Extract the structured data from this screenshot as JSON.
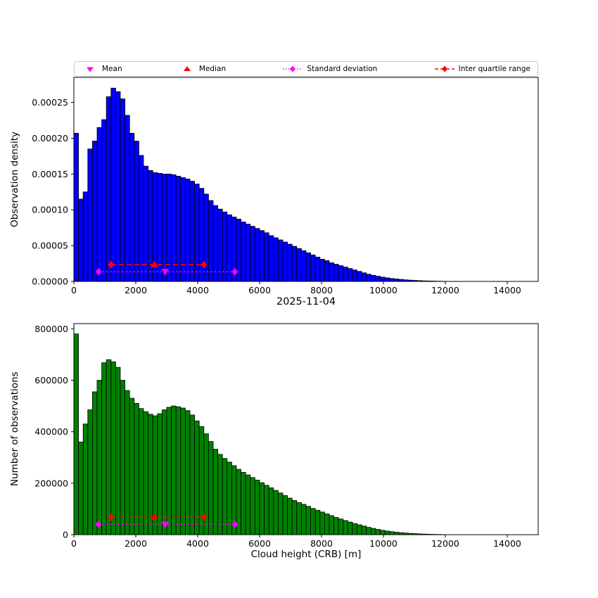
{
  "legend": {
    "items": [
      {
        "label": "Mean",
        "marker": "triangle-down",
        "color": "#FF00FF"
      },
      {
        "label": "Median",
        "marker": "triangle-up",
        "color": "#FF0000"
      },
      {
        "label": "Standard deviation",
        "marker": "diamond-dotted-line",
        "color": "#FF00FF"
      },
      {
        "label": "Inter quartile range",
        "marker": "diamond-dashed-line",
        "color": "#FF0000"
      }
    ]
  },
  "chart_data": [
    {
      "type": "bar",
      "name": "density-histogram",
      "title": "",
      "xlabel": "2025-11-04",
      "ylabel": "Observation density",
      "bar_color": "#0000FF",
      "grid": false,
      "legend_position": "top",
      "bin_start": 0,
      "bin_width": 150,
      "xlim": [
        0,
        15000
      ],
      "ylim": [
        0,
        0.000285
      ],
      "xticks": [
        0,
        2000,
        4000,
        6000,
        8000,
        10000,
        12000,
        14000
      ],
      "xtick_labels": [
        "0",
        "2000",
        "4000",
        "6000",
        "8000",
        "10000",
        "12000",
        "14000"
      ],
      "yticks": [
        0,
        5e-05,
        0.0001,
        0.00015,
        0.0002,
        0.00025
      ],
      "ytick_labels": [
        "0.00000",
        "0.00005",
        "0.00010",
        "0.00015",
        "0.00020",
        "0.00025"
      ],
      "values": [
        0.000207,
        0.000115,
        0.000125,
        0.000185,
        0.000196,
        0.000215,
        0.000226,
        0.000258,
        0.00027,
        0.000265,
        0.000255,
        0.000232,
        0.000207,
        0.000196,
        0.000176,
        0.000161,
        0.000155,
        0.000152,
        0.000151,
        0.00015,
        0.00015,
        0.000149,
        0.000147,
        0.000145,
        0.000143,
        0.00014,
        0.000136,
        0.00013,
        0.000122,
        0.000113,
        0.000106,
        0.000101,
        9.7e-05,
        9.3e-05,
        9e-05,
        8.7e-05,
        8.3e-05,
        8e-05,
        7.7e-05,
        7.4e-05,
        7.1e-05,
        6.8e-05,
        6.4e-05,
        6.1e-05,
        5.8e-05,
        5.5e-05,
        5.2e-05,
        4.9e-05,
        4.6e-05,
        4.3e-05,
        4e-05,
        3.7e-05,
        3.4e-05,
        3.1e-05,
        2.9e-05,
        2.6e-05,
        2.4e-05,
        2.2e-05,
        2e-05,
        1.8e-05,
        1.6e-05,
        1.4e-05,
        1.2e-05,
        1e-05,
        8.5e-06,
        7.2e-06,
        6e-06,
        5e-06,
        4.1e-06,
        3.4e-06,
        2.8e-06,
        2.2e-06,
        1.8e-06,
        1.4e-06,
        1.1e-06,
        8e-07,
        6e-07,
        5e-07,
        3e-07,
        2e-07
      ],
      "stats": {
        "mean": 2950,
        "mean_color": "#FF00FF",
        "median": 2600,
        "median_color": "#FF0000",
        "std_range": [
          800,
          5200
        ],
        "std_y": 1.35e-05,
        "std_color": "#FF00FF",
        "iqr_range": [
          1200,
          4200
        ],
        "iqr_y": 2.35e-05,
        "iqr_color": "#FF0000"
      }
    },
    {
      "type": "bar",
      "name": "count-histogram",
      "title": "",
      "xlabel": "Cloud height (CRB) [m]",
      "ylabel": "Number of observations",
      "bar_color": "#008000",
      "grid": false,
      "legend_position": "none",
      "bin_start": 0,
      "bin_width": 150,
      "xlim": [
        0,
        15000
      ],
      "ylim": [
        0,
        820000
      ],
      "xticks": [
        0,
        2000,
        4000,
        6000,
        8000,
        10000,
        12000,
        14000
      ],
      "xtick_labels": [
        "0",
        "2000",
        "4000",
        "6000",
        "8000",
        "10000",
        "12000",
        "14000"
      ],
      "yticks": [
        0,
        200000,
        400000,
        600000,
        800000
      ],
      "ytick_labels": [
        "0",
        "200000",
        "400000",
        "600000",
        "800000"
      ],
      "values": [
        780000,
        360000,
        430000,
        485000,
        555000,
        600000,
        668000,
        680000,
        672000,
        650000,
        600000,
        560000,
        530000,
        510000,
        490000,
        478000,
        468000,
        462000,
        470000,
        485000,
        495000,
        500000,
        497000,
        492000,
        482000,
        465000,
        442000,
        420000,
        392000,
        362000,
        332000,
        312000,
        296000,
        282000,
        268000,
        254000,
        242000,
        232000,
        222000,
        212000,
        202000,
        192000,
        182000,
        172000,
        162000,
        152000,
        142000,
        133000,
        125000,
        118000,
        110000,
        102000,
        95000,
        88000,
        81000,
        74000,
        67000,
        61000,
        55000,
        49000,
        43500,
        38500,
        33500,
        28500,
        24500,
        20500,
        17000,
        14000,
        11500,
        9500,
        7800,
        6300,
        5000,
        4000,
        3100,
        2400,
        1800,
        1300,
        900,
        600
      ],
      "stats": {
        "mean": 2950,
        "mean_color": "#FF00FF",
        "median": 2600,
        "median_color": "#FF0000",
        "std_range": [
          800,
          5200
        ],
        "std_y": 40000,
        "std_color": "#FF00FF",
        "iqr_range": [
          1200,
          4200
        ],
        "iqr_y": 68000,
        "iqr_color": "#FF0000"
      }
    }
  ]
}
